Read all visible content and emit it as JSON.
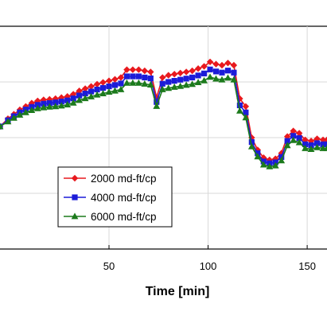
{
  "chart_data": {
    "type": "line",
    "xlabel": "Time [min]",
    "ylabel": "",
    "title": "",
    "xlim": [
      -5,
      160
    ],
    "x_ticks": [
      50,
      100,
      150
    ],
    "x_tick_labels": [
      "50",
      "100",
      "150"
    ],
    "ylim": [
      0,
      1
    ],
    "grid": true,
    "legend_position": "lower-left",
    "series": [
      {
        "name": "2000 md-ft/cp",
        "color": "#e8191e",
        "marker": "diamond",
        "x": [
          -5,
          -1,
          2,
          5,
          8,
          11,
          14,
          17,
          20,
          23,
          26,
          29,
          32,
          35,
          38,
          41,
          44,
          47,
          50,
          53,
          56,
          59,
          62,
          65,
          68,
          71,
          74,
          77,
          80,
          83,
          86,
          89,
          92,
          95,
          98,
          101,
          104,
          107,
          110,
          113,
          116,
          119,
          122,
          125,
          128,
          131,
          134,
          137,
          140,
          143,
          146,
          149,
          152,
          155,
          158,
          160
        ],
        "y": [
          0.55,
          0.585,
          0.605,
          0.625,
          0.64,
          0.655,
          0.665,
          0.67,
          0.672,
          0.675,
          0.68,
          0.685,
          0.695,
          0.71,
          0.72,
          0.73,
          0.74,
          0.748,
          0.755,
          0.762,
          0.77,
          0.805,
          0.805,
          0.805,
          0.8,
          0.795,
          0.68,
          0.77,
          0.78,
          0.785,
          0.79,
          0.795,
          0.8,
          0.81,
          0.82,
          0.84,
          0.83,
          0.825,
          0.835,
          0.825,
          0.675,
          0.64,
          0.5,
          0.445,
          0.41,
          0.4,
          0.405,
          0.43,
          0.505,
          0.53,
          0.52,
          0.49,
          0.485,
          0.495,
          0.49,
          0.49
        ]
      },
      {
        "name": "4000 md-ft/cp",
        "color": "#1c1cd8",
        "marker": "square",
        "x": [
          -5,
          -1,
          2,
          5,
          8,
          11,
          14,
          17,
          20,
          23,
          26,
          29,
          32,
          35,
          38,
          41,
          44,
          47,
          50,
          53,
          56,
          59,
          62,
          65,
          68,
          71,
          74,
          77,
          80,
          83,
          86,
          89,
          92,
          95,
          98,
          101,
          104,
          107,
          110,
          113,
          116,
          119,
          122,
          125,
          128,
          131,
          134,
          137,
          140,
          143,
          146,
          149,
          152,
          155,
          158,
          160
        ],
        "y": [
          0.55,
          0.578,
          0.596,
          0.613,
          0.626,
          0.638,
          0.647,
          0.652,
          0.655,
          0.658,
          0.662,
          0.667,
          0.676,
          0.689,
          0.698,
          0.707,
          0.716,
          0.723,
          0.73,
          0.736,
          0.743,
          0.775,
          0.775,
          0.775,
          0.77,
          0.766,
          0.66,
          0.742,
          0.75,
          0.755,
          0.76,
          0.765,
          0.77,
          0.779,
          0.788,
          0.806,
          0.797,
          0.792,
          0.801,
          0.792,
          0.645,
          0.613,
          0.48,
          0.43,
          0.393,
          0.385,
          0.389,
          0.413,
          0.485,
          0.508,
          0.498,
          0.47,
          0.466,
          0.475,
          0.47,
          0.47
        ]
      },
      {
        "name": "6000 md-ft/cp",
        "color": "#1c7a1c",
        "marker": "triangle",
        "x": [
          -5,
          -1,
          2,
          5,
          8,
          11,
          14,
          17,
          20,
          23,
          26,
          29,
          32,
          35,
          38,
          41,
          44,
          47,
          50,
          53,
          56,
          59,
          62,
          65,
          68,
          71,
          74,
          77,
          80,
          83,
          86,
          89,
          92,
          95,
          98,
          101,
          104,
          107,
          110,
          113,
          116,
          119,
          122,
          125,
          128,
          131,
          134,
          137,
          140,
          143,
          146,
          149,
          152,
          155,
          158,
          160
        ],
        "y": [
          0.55,
          0.572,
          0.588,
          0.602,
          0.613,
          0.623,
          0.631,
          0.635,
          0.638,
          0.64,
          0.643,
          0.648,
          0.656,
          0.668,
          0.676,
          0.684,
          0.692,
          0.698,
          0.705,
          0.71,
          0.716,
          0.745,
          0.745,
          0.745,
          0.741,
          0.737,
          0.641,
          0.716,
          0.722,
          0.727,
          0.731,
          0.736,
          0.74,
          0.748,
          0.756,
          0.772,
          0.764,
          0.76,
          0.768,
          0.76,
          0.62,
          0.59,
          0.46,
          0.415,
          0.378,
          0.37,
          0.374,
          0.397,
          0.465,
          0.488,
          0.478,
          0.452,
          0.448,
          0.456,
          0.452,
          0.452
        ]
      }
    ]
  }
}
